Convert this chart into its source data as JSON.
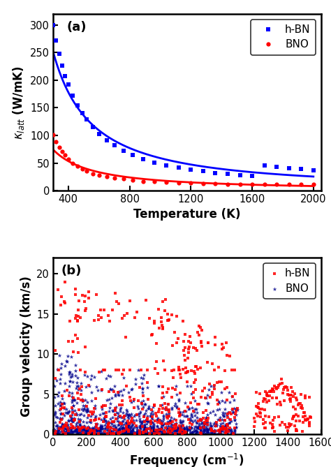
{
  "panel_a": {
    "title": "(a)",
    "xlabel": "Temperature (K)",
    "xlim": [
      300,
      2050
    ],
    "ylim": [
      0,
      320
    ],
    "xticks": [
      400,
      800,
      1200,
      1600,
      2000
    ],
    "yticks": [
      0,
      50,
      100,
      150,
      200,
      250,
      300
    ],
    "hbn_color": "#0000ff",
    "bno_color": "#ff0000",
    "hbn_label": "h-BN",
    "bno_label": "BNO",
    "hbn_T": [
      300,
      320,
      340,
      360,
      380,
      400,
      430,
      460,
      490,
      520,
      560,
      600,
      650,
      700,
      760,
      820,
      890,
      960,
      1040,
      1120,
      1200,
      1280,
      1360,
      1440,
      1520,
      1600,
      1680,
      1760,
      1840,
      1920,
      2000
    ],
    "hbn_k": [
      300,
      272,
      248,
      226,
      208,
      192,
      172,
      155,
      141,
      129,
      115,
      103,
      91,
      82,
      72,
      65,
      57,
      51,
      46,
      42,
      38,
      35,
      32,
      30,
      28,
      27,
      45,
      43,
      41,
      39,
      37
    ],
    "bno_T": [
      300,
      320,
      340,
      360,
      380,
      400,
      430,
      460,
      490,
      520,
      560,
      600,
      650,
      700,
      760,
      820,
      890,
      960,
      1040,
      1120,
      1200,
      1280,
      1360,
      1440,
      1520,
      1600,
      1680,
      1760,
      1840,
      1920,
      2000
    ],
    "bno_k": [
      101,
      89,
      79,
      71,
      64,
      57,
      50,
      44,
      39,
      35,
      31,
      28,
      25,
      23,
      21,
      19,
      17,
      16,
      15,
      14,
      13.5,
      13,
      12.5,
      12,
      12,
      11.5,
      11.5,
      11,
      11,
      11,
      11
    ]
  },
  "panel_b": {
    "title": "(b)",
    "xlabel": "Frequency (cm$^{-1}$)",
    "ylabel": "Group velocity (km/s)",
    "xlim": [
      0,
      1600
    ],
    "ylim": [
      0,
      22
    ],
    "xticks": [
      0,
      200,
      400,
      600,
      800,
      1000,
      1200,
      1400,
      1600
    ],
    "yticks": [
      0,
      5,
      10,
      15,
      20
    ],
    "hbn_color": "#ff0000",
    "bno_color": "#00008b",
    "hbn_label": "h-BN",
    "bno_label": "BNO"
  },
  "figsize": [
    4.74,
    6.69
  ],
  "dpi": 100
}
